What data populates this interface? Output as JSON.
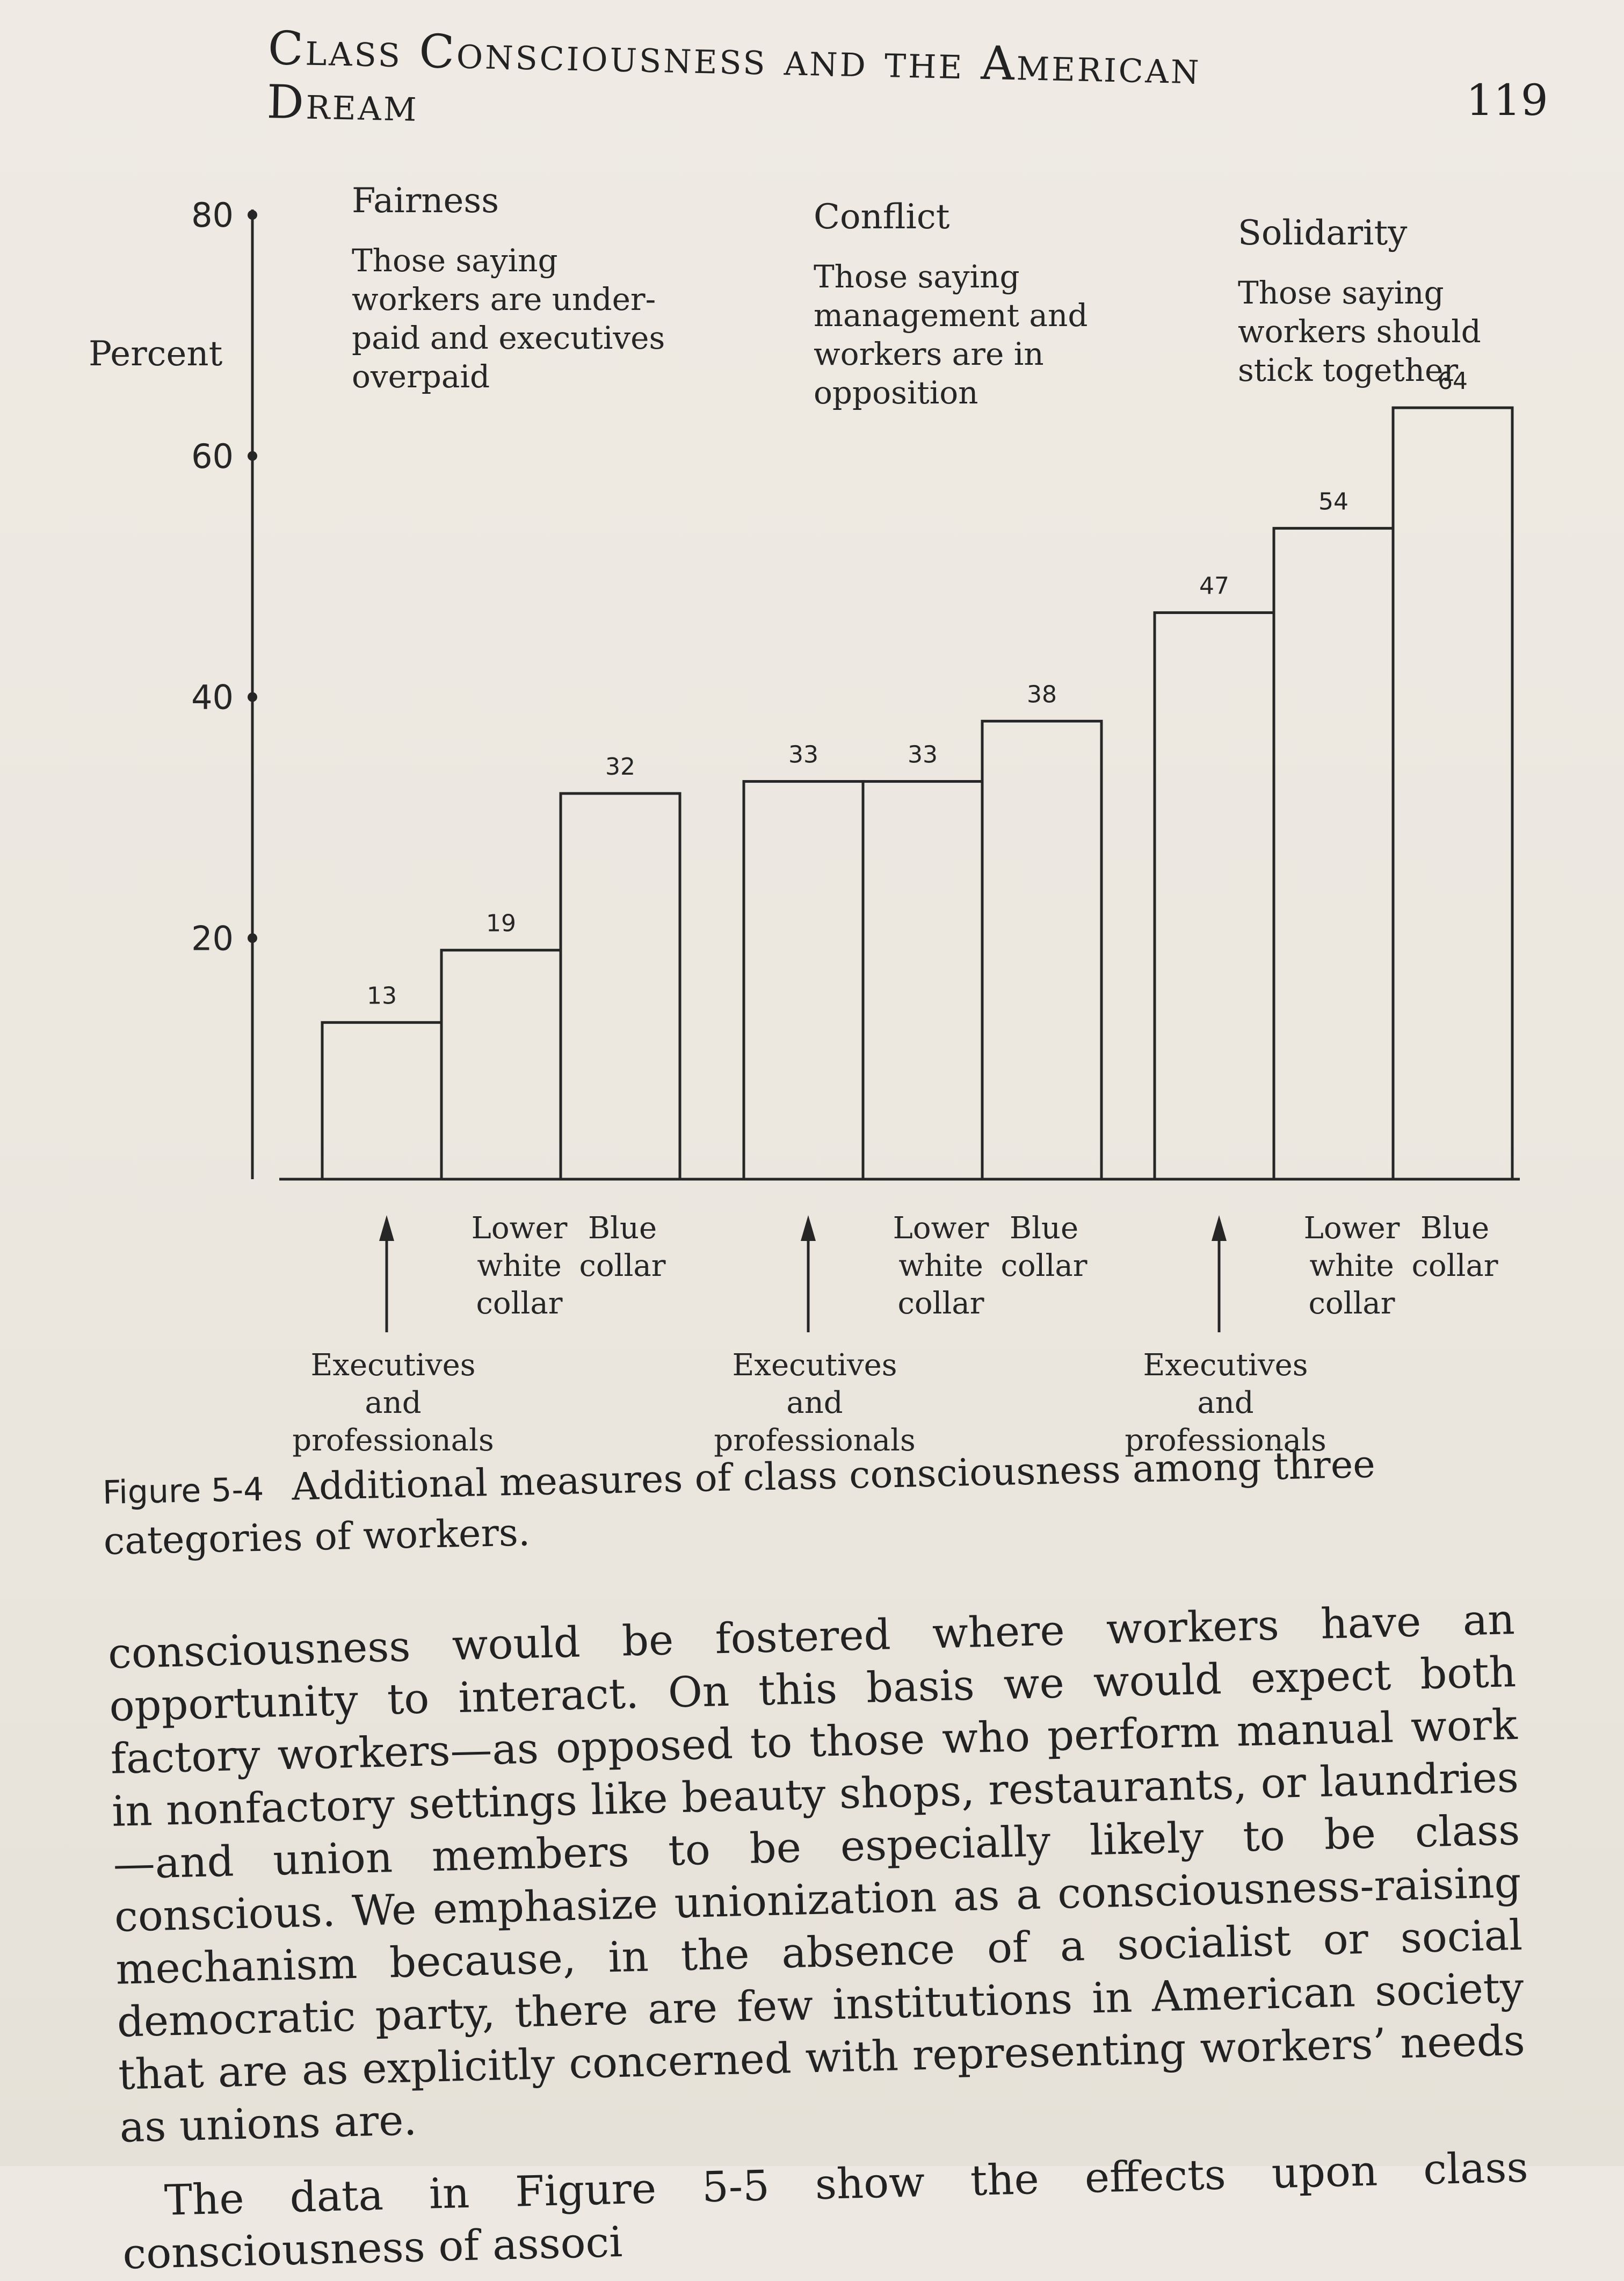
{
  "header": {
    "running_head": "Class Consciousness and the American Dream",
    "page_number": "119"
  },
  "chart_data": {
    "type": "bar",
    "ylabel": "Percent",
    "ylim": [
      0,
      80
    ],
    "yticks": [
      "20",
      "40",
      "60",
      "80"
    ],
    "groups": [
      {
        "title": "Fairness",
        "description": [
          "Those saying",
          "workers are under-",
          "paid and executives",
          "overpaid"
        ],
        "values": [
          13,
          19,
          32
        ]
      },
      {
        "title": "Conflict",
        "description": [
          "Those saying",
          "management and",
          "workers are in",
          "opposition"
        ],
        "values": [
          33,
          33,
          38
        ]
      },
      {
        "title": "Solidarity",
        "description": [
          "Those saying",
          "workers should",
          "stick together"
        ],
        "values": [
          47,
          54,
          64
        ]
      }
    ],
    "categories": [
      "Executives and professionals",
      "Lower white collar",
      "Blue collar"
    ],
    "category_lines": {
      "executives": [
        "Executives",
        "and",
        "professionals"
      ],
      "lower_white": [
        "Lower",
        "white",
        "collar"
      ],
      "blue": [
        "Blue",
        "collar"
      ]
    }
  },
  "caption": {
    "label": "Figure 5-4",
    "text": "Additional measures of class consciousness among three categories of workers."
  },
  "body": {
    "paragraph1": "consciousness would be fostered where workers have an opportunity to interact. On this basis we would expect both factory workers—as opposed to those who perform manual work in nonfactory settings like beauty shops, restaurants, or laundries—and union members to be especially likely to be class conscious. We emphasize unionization as a consciousness-raising mechanism because, in the absence of a socialist or social democratic party, there are few institutions in American society that are as explicitly concerned with representing workers’ needs as unions are.",
    "paragraph2": "The data in Figure 5-5 show the effects upon class consciousness of associ"
  }
}
